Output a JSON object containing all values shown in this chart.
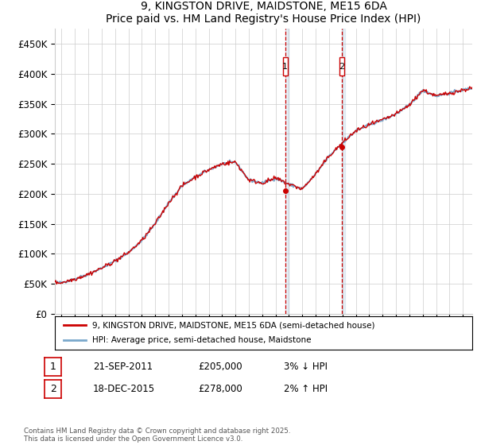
{
  "title": "9, KINGSTON DRIVE, MAIDSTONE, ME15 6DA",
  "subtitle": "Price paid vs. HM Land Registry's House Price Index (HPI)",
  "ylabel_ticks": [
    "£0",
    "£50K",
    "£100K",
    "£150K",
    "£200K",
    "£250K",
    "£300K",
    "£350K",
    "£400K",
    "£450K"
  ],
  "ytick_values": [
    0,
    50000,
    100000,
    150000,
    200000,
    250000,
    300000,
    350000,
    400000,
    450000
  ],
  "ylim": [
    0,
    475000
  ],
  "xlim_start": 1994.5,
  "xlim_end": 2025.7,
  "property_color": "#cc0000",
  "hpi_color": "#7aa8cc",
  "transaction1_date": 2011.72,
  "transaction1_price": 205000,
  "transaction1_label": "1",
  "transaction2_date": 2015.96,
  "transaction2_price": 278000,
  "transaction2_label": "2",
  "legend_property": "9, KINGSTON DRIVE, MAIDSTONE, ME15 6DA (semi-detached house)",
  "legend_hpi": "HPI: Average price, semi-detached house, Maidstone",
  "annotation1_date": "21-SEP-2011",
  "annotation1_price": "£205,000",
  "annotation1_pct": "3% ↓ HPI",
  "annotation2_date": "18-DEC-2015",
  "annotation2_price": "£278,000",
  "annotation2_pct": "2% ↑ HPI",
  "footnote": "Contains HM Land Registry data © Crown copyright and database right 2025.\nThis data is licensed under the Open Government Licence v3.0.",
  "background_color": "#ffffff",
  "grid_color": "#cccccc"
}
